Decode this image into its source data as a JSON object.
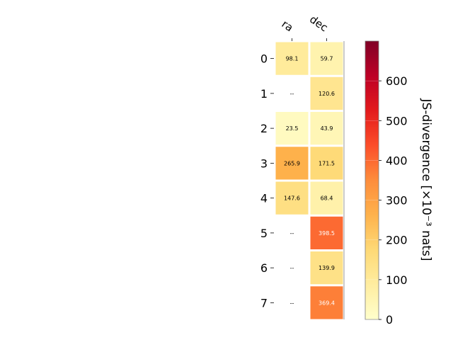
{
  "chart_data": {
    "type": "heatmap",
    "columns": [
      "ra",
      "dec"
    ],
    "rows": [
      "0",
      "1",
      "2",
      "3",
      "4",
      "5",
      "6",
      "7"
    ],
    "values": [
      [
        98.1,
        59.7
      ],
      [
        null,
        120.6
      ],
      [
        23.5,
        43.9
      ],
      [
        265.9,
        171.5
      ],
      [
        147.6,
        68.4
      ],
      [
        null,
        398.5
      ],
      [
        null,
        139.9
      ],
      [
        null,
        369.4
      ]
    ],
    "cell_labels": [
      [
        "98.1",
        "59.7"
      ],
      [
        "--",
        "120.6"
      ],
      [
        "23.5",
        "43.9"
      ],
      [
        "265.9",
        "171.5"
      ],
      [
        "147.6",
        "68.4"
      ],
      [
        "--",
        "398.5"
      ],
      [
        "--",
        "139.9"
      ],
      [
        "--",
        "369.4"
      ]
    ],
    "colorbar": {
      "label": "JS-divergence [×10⁻³ nats]",
      "range": [
        0,
        700
      ],
      "ticks": [
        "0",
        "100",
        "200",
        "300",
        "400",
        "500",
        "600"
      ],
      "colormap": "YlOrRd"
    }
  }
}
